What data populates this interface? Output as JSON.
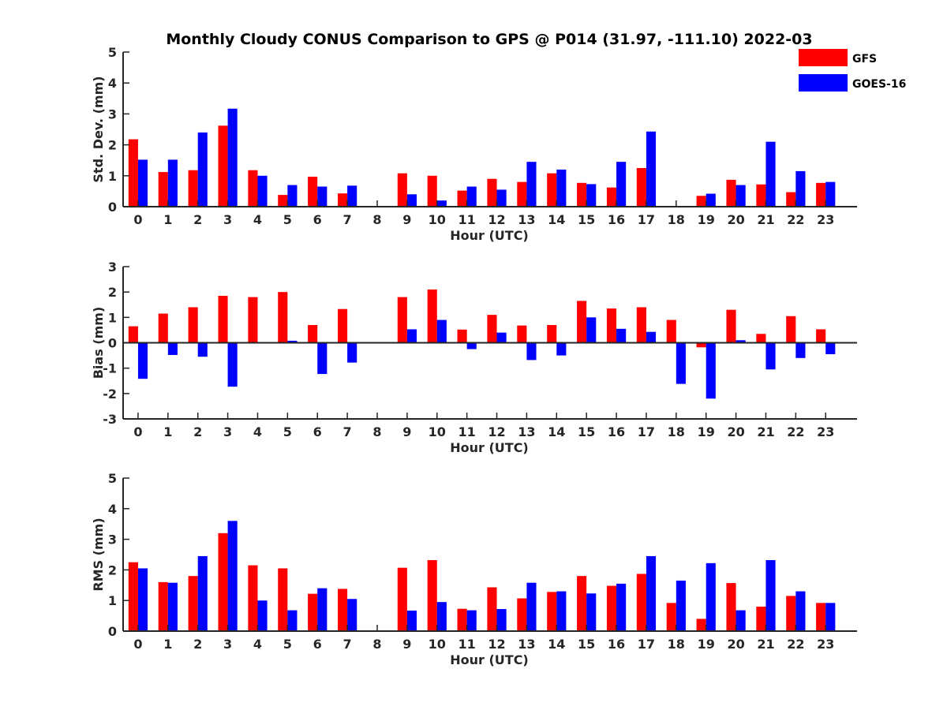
{
  "title": "Monthly Cloudy CONUS Comparison to GPS @ P014 (31.97, -111.10) 2022-03",
  "legend": [
    {
      "name": "GFS",
      "color": "#ff0000"
    },
    {
      "name": "GOES-16",
      "color": "#0000ff"
    }
  ],
  "chart_data": [
    {
      "type": "bar",
      "categories": [
        "0",
        "1",
        "2",
        "3",
        "4",
        "5",
        "6",
        "7",
        "8",
        "9",
        "10",
        "11",
        "12",
        "13",
        "14",
        "15",
        "16",
        "17",
        "18",
        "19",
        "20",
        "21",
        "22",
        "23"
      ],
      "xlabel": "Hour (UTC)",
      "ylabel": "Std. Dev. (mm)",
      "ylim": [
        0,
        5
      ],
      "yticks": [
        "0",
        "1",
        "2",
        "3",
        "4",
        "5"
      ],
      "legend_position": "top-right",
      "series": [
        {
          "name": "GFS",
          "color": "#ff0000",
          "values": [
            2.18,
            1.12,
            1.18,
            2.62,
            1.18,
            0.38,
            0.97,
            0.43,
            0,
            1.08,
            1.0,
            0.52,
            0.9,
            0.8,
            1.08,
            0.77,
            0.62,
            1.25,
            0,
            0.35,
            0.87,
            0.72,
            0.47,
            0.77
          ]
        },
        {
          "name": "GOES-16",
          "color": "#0000ff",
          "values": [
            1.52,
            1.52,
            2.4,
            3.17,
            1.0,
            0.7,
            0.65,
            0.68,
            0,
            0.4,
            0.2,
            0.65,
            0.55,
            1.45,
            1.2,
            0.73,
            1.45,
            2.43,
            0,
            0.42,
            0.7,
            2.1,
            1.15,
            0.8
          ]
        }
      ]
    },
    {
      "type": "bar",
      "categories": [
        "0",
        "1",
        "2",
        "3",
        "4",
        "5",
        "6",
        "7",
        "8",
        "9",
        "10",
        "11",
        "12",
        "13",
        "14",
        "15",
        "16",
        "17",
        "18",
        "19",
        "20",
        "21",
        "22",
        "23"
      ],
      "xlabel": "Hour (UTC)",
      "ylabel": "Bias (mm)",
      "ylim": [
        -3,
        3
      ],
      "yticks": [
        "-3",
        "-2",
        "-1",
        "0",
        "1",
        "2",
        "3"
      ],
      "series": [
        {
          "name": "GFS",
          "color": "#ff0000",
          "values": [
            0.65,
            1.15,
            1.4,
            1.85,
            1.8,
            2.0,
            0.7,
            1.33,
            0,
            1.8,
            2.1,
            0.52,
            1.1,
            0.68,
            0.7,
            1.65,
            1.35,
            1.4,
            0.9,
            -0.18,
            1.3,
            0.35,
            1.05,
            0.53
          ]
        },
        {
          "name": "GOES-16",
          "color": "#0000ff",
          "values": [
            -1.42,
            -0.48,
            -0.55,
            -1.73,
            0,
            0.08,
            -1.23,
            -0.78,
            0,
            0.53,
            0.9,
            -0.25,
            0.4,
            -0.68,
            -0.5,
            1.0,
            0.55,
            0.43,
            -1.62,
            -2.2,
            0.1,
            -1.05,
            -0.6,
            -0.45
          ]
        }
      ]
    },
    {
      "type": "bar",
      "categories": [
        "0",
        "1",
        "2",
        "3",
        "4",
        "5",
        "6",
        "7",
        "8",
        "9",
        "10",
        "11",
        "12",
        "13",
        "14",
        "15",
        "16",
        "17",
        "18",
        "19",
        "20",
        "21",
        "22",
        "23"
      ],
      "xlabel": "Hour (UTC)",
      "ylabel": "RMS (mm)",
      "ylim": [
        0,
        5
      ],
      "yticks": [
        "0",
        "1",
        "2",
        "3",
        "4",
        "5"
      ],
      "series": [
        {
          "name": "GFS",
          "color": "#ff0000",
          "values": [
            2.25,
            1.6,
            1.8,
            3.2,
            2.15,
            2.05,
            1.22,
            1.38,
            0,
            2.07,
            2.32,
            0.73,
            1.43,
            1.07,
            1.28,
            1.8,
            1.48,
            1.87,
            0.92,
            0.4,
            1.57,
            0.8,
            1.15,
            0.92
          ]
        },
        {
          "name": "GOES-16",
          "color": "#0000ff",
          "values": [
            2.05,
            1.58,
            2.45,
            3.6,
            1.0,
            0.68,
            1.4,
            1.05,
            0,
            0.67,
            0.95,
            0.68,
            0.72,
            1.58,
            1.3,
            1.23,
            1.55,
            2.45,
            1.65,
            2.22,
            0.68,
            2.32,
            1.3,
            0.92
          ]
        }
      ]
    }
  ]
}
